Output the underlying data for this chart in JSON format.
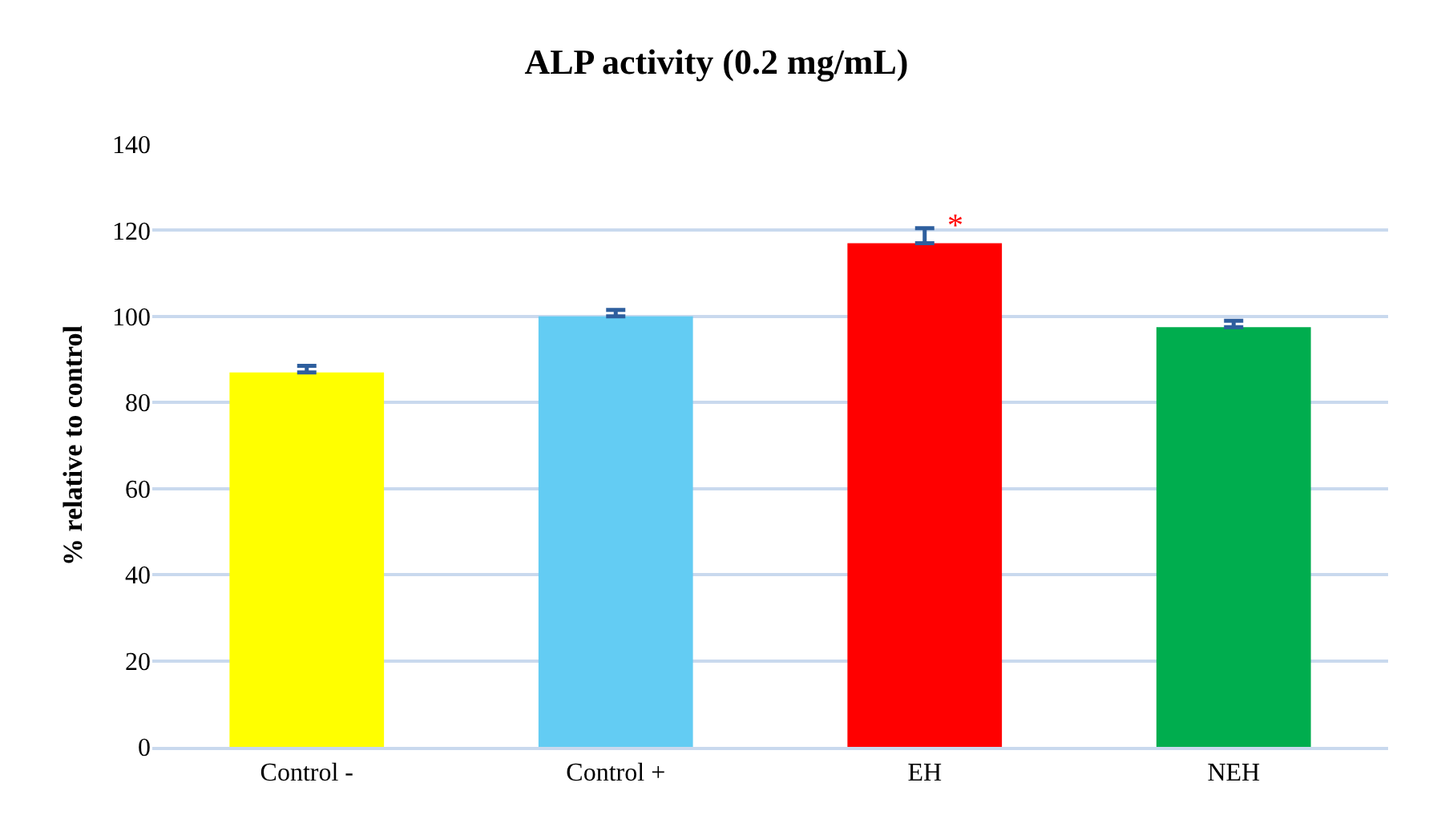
{
  "chart_data": {
    "type": "bar",
    "title": "ALP activity (0.2 mg/mL)",
    "ylabel": "% relative to control",
    "categories": [
      "Control -",
      "Control +",
      "EH",
      "NEH"
    ],
    "values": [
      87,
      100,
      117,
      97.5
    ],
    "colors": [
      "#ffff00",
      "#63ccf3",
      "#ff0000",
      "#00ad4e"
    ],
    "errors": [
      [
        87,
        88.5
      ],
      [
        100,
        101.5
      ],
      [
        117,
        120.5
      ],
      [
        97.5,
        99
      ]
    ],
    "annotations": [
      {
        "text": "*",
        "x": "EH",
        "y": 121
      }
    ],
    "ylim": [
      0,
      140
    ],
    "yticks": [
      0,
      20,
      40,
      60,
      80,
      100,
      120,
      140
    ],
    "grid": "y"
  }
}
